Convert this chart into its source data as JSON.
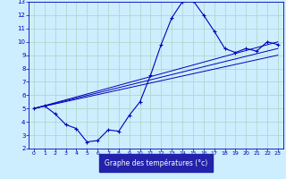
{
  "xlabel": "Graphe des températures (°c)",
  "bg_color": "#cceeff",
  "grid_color": "#b0d8cc",
  "line_color": "#0000bb",
  "label_bg_color": "#2222aa",
  "label_text_color": "#ffffff",
  "xlim": [
    -0.5,
    23.5
  ],
  "ylim": [
    2,
    13
  ],
  "xticks": [
    0,
    1,
    2,
    3,
    4,
    5,
    6,
    7,
    8,
    9,
    10,
    11,
    12,
    13,
    14,
    15,
    16,
    17,
    18,
    19,
    20,
    21,
    22,
    23
  ],
  "yticks": [
    2,
    3,
    4,
    5,
    6,
    7,
    8,
    9,
    10,
    11,
    12,
    13
  ],
  "figsize": [
    3.2,
    2.0
  ],
  "dpi": 100,
  "curve1_x": [
    0,
    1,
    2,
    3,
    4,
    5,
    6,
    7,
    8,
    9,
    10,
    11,
    12,
    13,
    14,
    15,
    16,
    17,
    18,
    19,
    20,
    21,
    22,
    23
  ],
  "curve1_y": [
    5.0,
    5.2,
    4.6,
    3.8,
    3.5,
    2.5,
    2.6,
    3.4,
    3.3,
    4.5,
    5.5,
    7.5,
    9.8,
    11.8,
    13.0,
    13.1,
    12.0,
    10.8,
    9.5,
    9.2,
    9.5,
    9.3,
    10.0,
    9.8
  ],
  "line1_x": [
    0,
    23
  ],
  "line1_y": [
    5.0,
    10.0
  ],
  "line2_x": [
    0,
    23
  ],
  "line2_y": [
    5.0,
    9.5
  ],
  "line3_x": [
    0,
    23
  ],
  "line3_y": [
    5.0,
    9.0
  ]
}
